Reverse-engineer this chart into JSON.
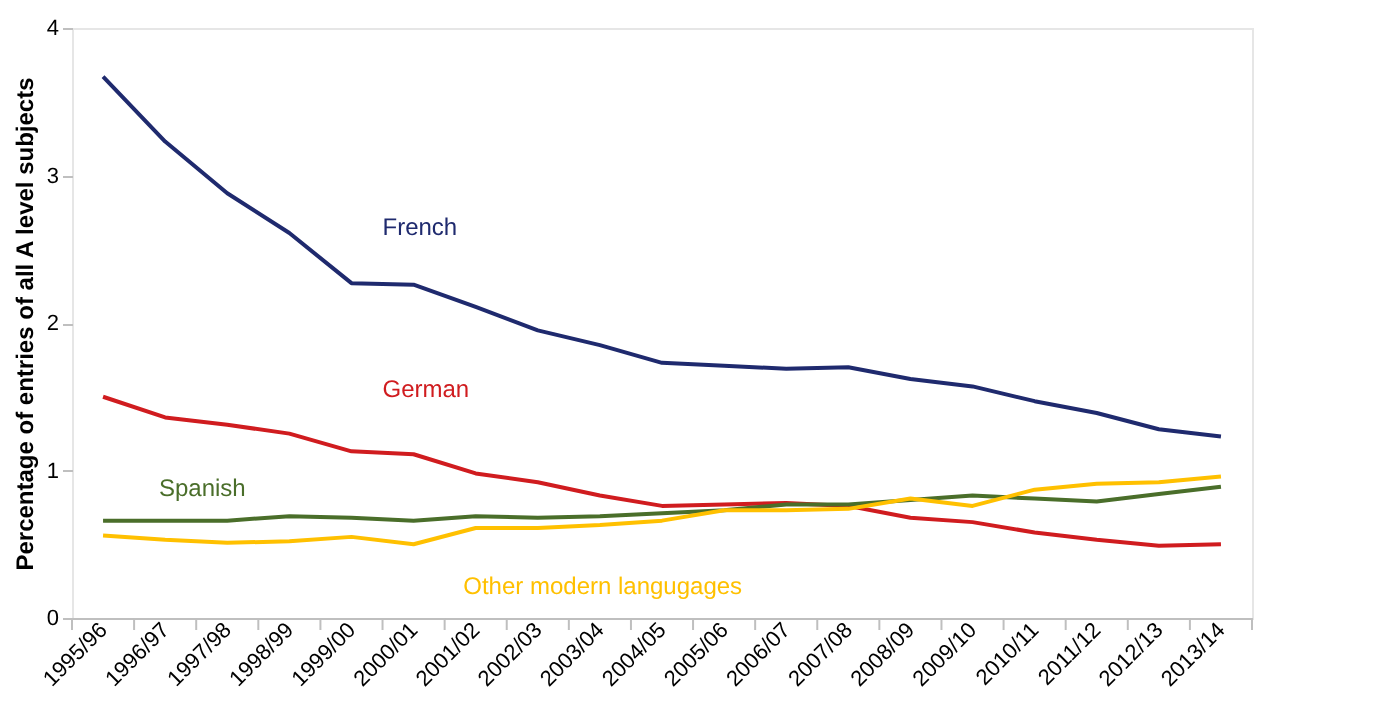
{
  "chart_data": {
    "type": "line",
    "ylabel": "Percentage of entries of all A level subjects",
    "categories": [
      "1995/96",
      "1996/97",
      "1997/98",
      "1998/99",
      "1999/00",
      "2000/01",
      "2001/02",
      "2002/03",
      "2003/04",
      "2004/05",
      "2005/06",
      "2006/07",
      "2007/08",
      "2008/09",
      "2009/10",
      "2010/11",
      "2011/12",
      "2012/13",
      "2013/14"
    ],
    "series": [
      {
        "name": "French",
        "color": "#1f2a6e",
        "values": [
          3.67,
          3.23,
          2.88,
          2.61,
          2.27,
          2.26,
          2.11,
          1.95,
          1.85,
          1.73,
          1.71,
          1.69,
          1.7,
          1.62,
          1.57,
          1.47,
          1.39,
          1.28,
          1.23
        ]
      },
      {
        "name": "German",
        "color": "#d01c1f",
        "values": [
          1.5,
          1.36,
          1.31,
          1.25,
          1.13,
          1.11,
          0.98,
          0.92,
          0.83,
          0.76,
          0.77,
          0.78,
          0.76,
          0.68,
          0.65,
          0.58,
          0.53,
          0.49,
          0.5
        ]
      },
      {
        "name": "Spanish",
        "color": "#4a6e2a",
        "values": [
          0.66,
          0.66,
          0.66,
          0.69,
          0.68,
          0.66,
          0.69,
          0.68,
          0.69,
          0.71,
          0.73,
          0.77,
          0.77,
          0.8,
          0.83,
          0.81,
          0.79,
          0.84,
          0.89
        ]
      },
      {
        "name": "Other modern langugages",
        "color": "#ffc000",
        "values": [
          0.56,
          0.53,
          0.51,
          0.52,
          0.55,
          0.5,
          0.61,
          0.61,
          0.63,
          0.66,
          0.73,
          0.73,
          0.74,
          0.81,
          0.76,
          0.87,
          0.91,
          0.92,
          0.96
        ]
      }
    ],
    "ylim": [
      0,
      4
    ],
    "yticks": [
      0,
      1,
      2,
      3,
      4
    ],
    "grid": false,
    "legend": false,
    "marker": "none",
    "line_style": "solid"
  }
}
